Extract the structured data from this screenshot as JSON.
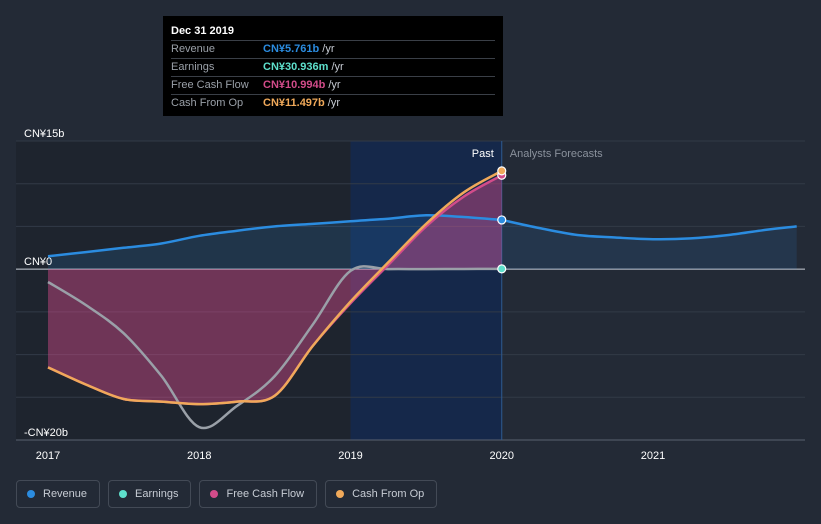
{
  "tooltip": {
    "date": "Dec 31 2019",
    "rows": [
      {
        "label": "Revenue",
        "value": "CN¥5.761b",
        "unit": "/yr",
        "color": "#2b8ce0"
      },
      {
        "label": "Earnings",
        "value": "CN¥30.936m",
        "unit": "/yr",
        "color": "#5ee0cc"
      },
      {
        "label": "Free Cash Flow",
        "value": "CN¥10.994b",
        "unit": "/yr",
        "color": "#d24c8a"
      },
      {
        "label": "Cash From Op",
        "value": "CN¥11.497b",
        "unit": "/yr",
        "color": "#f0a95a"
      }
    ]
  },
  "legend": [
    {
      "label": "Revenue",
      "color": "#2b8ce0"
    },
    {
      "label": "Earnings",
      "color": "#5ee0cc"
    },
    {
      "label": "Free Cash Flow",
      "color": "#d24c8a"
    },
    {
      "label": "Cash From Op",
      "color": "#f0a95a"
    }
  ],
  "chart_data": {
    "type": "line",
    "title": "",
    "ylim": [
      -20,
      15
    ],
    "y_unit": "CN¥ billions",
    "y_tick_labels": [
      {
        "value": 15,
        "label": "CN¥15b"
      },
      {
        "value": 0,
        "label": "CN¥0"
      },
      {
        "value": -20,
        "label": "-CN¥20b"
      }
    ],
    "x_range": [
      2017,
      2021.95
    ],
    "x_tick_labels": [
      {
        "value": 2017,
        "label": "2017"
      },
      {
        "value": 2018,
        "label": "2018"
      },
      {
        "value": 2019,
        "label": "2019"
      },
      {
        "value": 2020,
        "label": "2020"
      },
      {
        "value": 2021,
        "label": "2021"
      }
    ],
    "past_label": "Past",
    "forecast_label": "Analysts Forecasts",
    "divider_x": 2020,
    "highlight_start_x": 2019,
    "series": [
      {
        "name": "Revenue",
        "color": "#2b8ce0",
        "area": true,
        "x": [
          2017,
          2017.25,
          2017.5,
          2017.75,
          2018,
          2018.25,
          2018.5,
          2018.75,
          2019,
          2019.25,
          2019.5,
          2019.75,
          2020
        ],
        "y": [
          1.5,
          2.0,
          2.5,
          3.0,
          3.9,
          4.5,
          5.0,
          5.3,
          5.6,
          5.9,
          6.3,
          6.1,
          5.76
        ]
      },
      {
        "name": "Revenue forecast",
        "color": "#2b8ce0",
        "area": true,
        "x": [
          2020,
          2020.25,
          2020.5,
          2020.75,
          2021,
          2021.25,
          2021.5,
          2021.75,
          2021.95
        ],
        "y": [
          5.76,
          4.8,
          4.0,
          3.7,
          3.5,
          3.6,
          4.0,
          4.6,
          5.0
        ]
      },
      {
        "name": "Earnings",
        "color": "#9aa0a8",
        "area": false,
        "x": [
          2017,
          2017.25,
          2017.5,
          2017.75,
          2018,
          2018.25,
          2018.5,
          2018.75,
          2019,
          2019.25,
          2019.5,
          2019.75,
          2020
        ],
        "y": [
          -1.5,
          -4.2,
          -7.5,
          -12.5,
          -18.5,
          -16,
          -12.5,
          -6.5,
          -0.2,
          0.0,
          0.0,
          0.02,
          0.031
        ]
      },
      {
        "name": "Free Cash Flow",
        "color": "#d24c8a",
        "area": true,
        "x": [
          2017,
          2017.25,
          2017.5,
          2017.75,
          2018,
          2018.25,
          2018.5,
          2018.75,
          2019,
          2019.25,
          2019.5,
          2019.75,
          2020
        ],
        "y": [
          -11.5,
          -13.5,
          -15.2,
          -15.5,
          -15.8,
          -15.5,
          -14.8,
          -9.0,
          -4.0,
          0.5,
          5.0,
          8.5,
          10.99
        ]
      },
      {
        "name": "Cash From Op",
        "color": "#f0a95a",
        "area": false,
        "x": [
          2017,
          2017.25,
          2017.5,
          2017.75,
          2018,
          2018.25,
          2018.5,
          2018.75,
          2019,
          2019.25,
          2019.5,
          2019.75,
          2020
        ],
        "y": [
          -11.5,
          -13.5,
          -15.2,
          -15.5,
          -15.8,
          -15.5,
          -14.8,
          -9.0,
          -3.8,
          0.8,
          5.3,
          9.0,
          11.5
        ]
      }
    ]
  }
}
